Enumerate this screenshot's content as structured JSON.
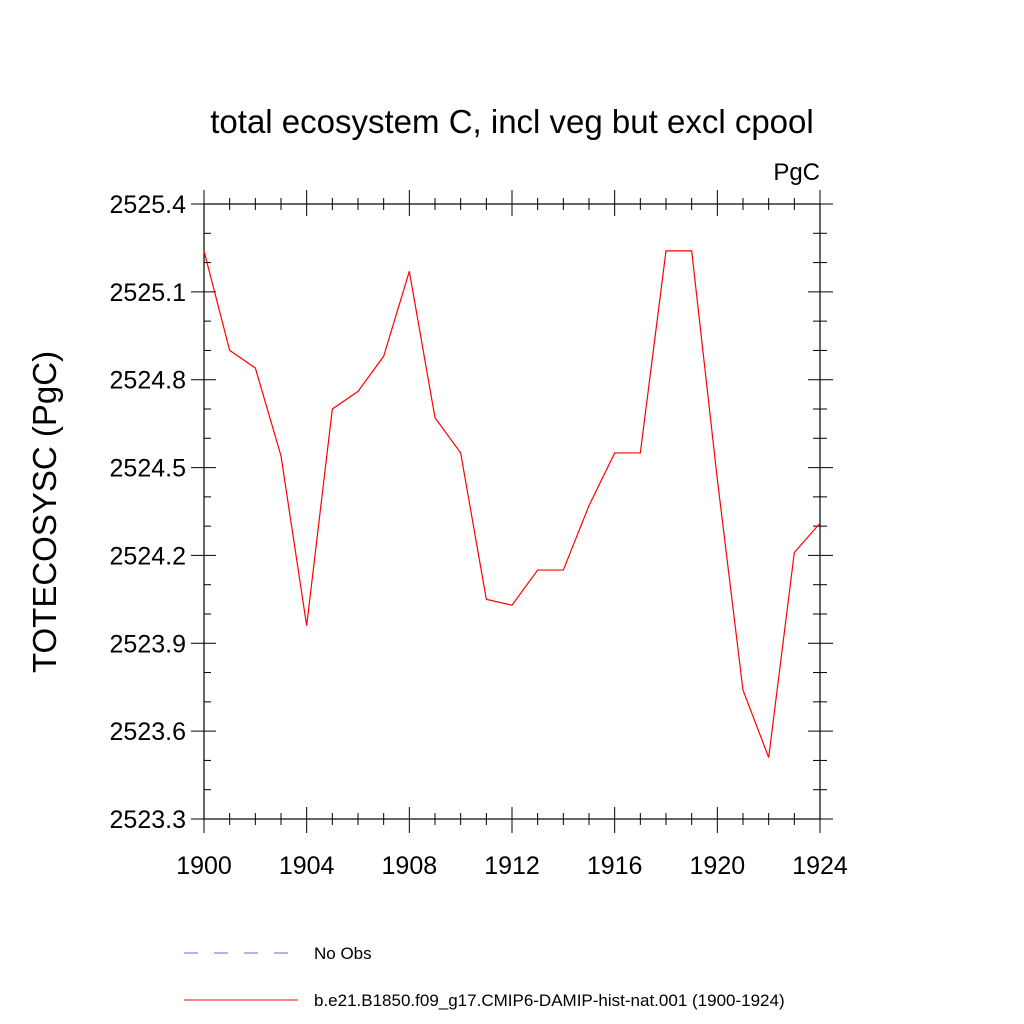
{
  "chart_data": {
    "type": "line",
    "title": "total ecosystem C, incl veg but excl cpool",
    "units": "PgC",
    "ylabel": "TOTECOSYSC  (PgC)",
    "xlabel": "",
    "xlim": [
      1900,
      1924
    ],
    "ylim": [
      2523.3,
      2525.4
    ],
    "x_ticks": [
      1900,
      1904,
      1908,
      1912,
      1916,
      1920,
      1924
    ],
    "x_tick_labels": [
      "1900",
      "1904",
      "1908",
      "1912",
      "1916",
      "1920",
      "1924"
    ],
    "y_ticks": [
      2523.3,
      2523.6,
      2523.9,
      2524.2,
      2524.5,
      2524.8,
      2525.1,
      2525.4
    ],
    "y_tick_labels": [
      "2523.3",
      "2523.6",
      "2523.9",
      "2524.2",
      "2524.5",
      "2524.8",
      "2525.1",
      "2525.4"
    ],
    "grid": false,
    "legend_position": "bottom",
    "series": [
      {
        "name": "b.e21.B1850.f09_g17.CMIP6-DAMIP-hist-nat.001 (1900-1924)",
        "color": "#ff0000",
        "style": "solid",
        "x": [
          1900,
          1901,
          1902,
          1903,
          1904,
          1905,
          1906,
          1907,
          1908,
          1909,
          1910,
          1911,
          1912,
          1913,
          1914,
          1915,
          1916,
          1917,
          1918,
          1919,
          1920,
          1921,
          1922,
          1923,
          1924
        ],
        "y": [
          2525.24,
          2524.9,
          2524.84,
          2524.54,
          2523.96,
          2524.7,
          2524.76,
          2524.88,
          2525.17,
          2524.67,
          2524.55,
          2524.05,
          2524.03,
          2524.15,
          2524.15,
          2524.37,
          2524.55,
          2524.55,
          2525.24,
          2525.24,
          2524.46,
          2523.74,
          2523.51,
          2524.21,
          2524.31
        ]
      }
    ],
    "legend": [
      {
        "label": "No Obs",
        "color": "#6a6ad8",
        "style": "dashed"
      },
      {
        "label": "b.e21.B1850.f09_g17.CMIP6-DAMIP-hist-nat.001 (1900-1924)",
        "color": "#ff0000",
        "style": "solid"
      }
    ]
  }
}
